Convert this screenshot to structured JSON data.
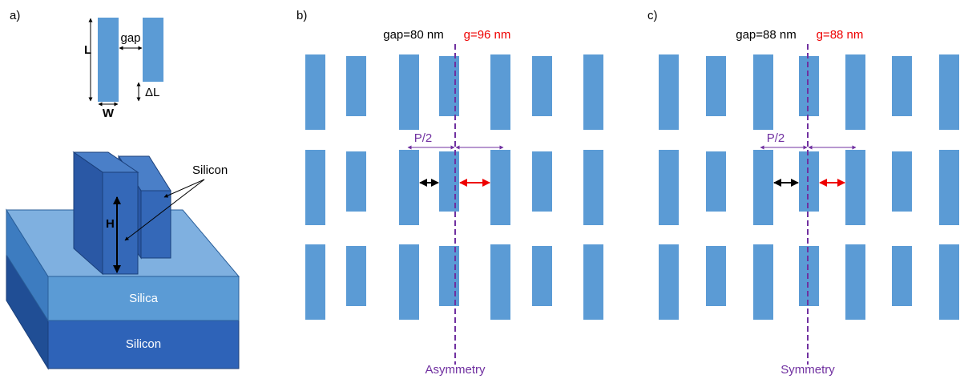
{
  "panel_a": {
    "label": "a)",
    "dim_L": "L",
    "dim_gap": "gap",
    "dim_dL": "ΔL",
    "dim_W": "W",
    "height": "H",
    "silicon_label": "Silicon",
    "layer_top": "Silica",
    "layer_bottom": "Silicon"
  },
  "panel_b": {
    "label": "b)",
    "gap": "gap=80 nm",
    "g": "g=96 nm",
    "period": "P/2",
    "caption": "Asymmetry"
  },
  "panel_c": {
    "label": "c)",
    "gap": "gap=88 nm",
    "g": "g=88 nm",
    "period": "P/2",
    "caption": "Symmetry"
  }
}
